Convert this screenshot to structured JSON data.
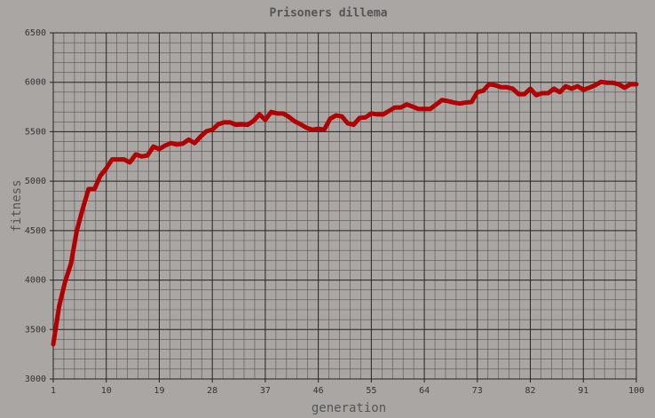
{
  "chart_data": {
    "type": "line",
    "title": "Prisoners dillema",
    "x_label": "generation",
    "y_label": "fitness",
    "x": [
      1,
      2,
      3,
      4,
      5,
      6,
      7,
      8,
      9,
      10,
      11,
      12,
      13,
      14,
      15,
      16,
      17,
      18,
      19,
      20,
      21,
      22,
      23,
      24,
      25,
      26,
      27,
      28,
      29,
      30,
      31,
      32,
      33,
      34,
      35,
      36,
      37,
      38,
      39,
      40,
      41,
      42,
      43,
      44,
      45,
      46,
      47,
      48,
      49,
      50,
      51,
      52,
      53,
      54,
      55,
      56,
      57,
      58,
      59,
      60,
      61,
      62,
      63,
      64,
      65,
      66,
      67,
      68,
      69,
      70,
      71,
      72,
      73,
      74,
      75,
      76,
      77,
      78,
      79,
      80,
      81,
      82,
      83,
      84,
      85,
      86,
      87,
      88,
      89,
      90,
      91,
      92,
      93,
      94,
      95,
      96,
      97,
      98,
      99,
      100
    ],
    "values": [
      3350,
      3735,
      3980,
      4165,
      4500,
      4720,
      4920,
      4920,
      5055,
      5130,
      5220,
      5220,
      5220,
      5190,
      5270,
      5250,
      5260,
      5350,
      5325,
      5360,
      5385,
      5370,
      5380,
      5420,
      5385,
      5450,
      5505,
      5520,
      5575,
      5595,
      5595,
      5570,
      5575,
      5570,
      5610,
      5675,
      5620,
      5700,
      5685,
      5685,
      5650,
      5605,
      5575,
      5540,
      5520,
      5530,
      5520,
      5630,
      5665,
      5655,
      5585,
      5570,
      5640,
      5645,
      5685,
      5675,
      5675,
      5710,
      5745,
      5745,
      5775,
      5755,
      5730,
      5730,
      5730,
      5775,
      5820,
      5810,
      5795,
      5785,
      5795,
      5800,
      5900,
      5915,
      5980,
      5970,
      5950,
      5950,
      5935,
      5880,
      5880,
      5935,
      5870,
      5890,
      5890,
      5935,
      5900,
      5960,
      5935,
      5960,
      5925,
      5945,
      5970,
      6005,
      5995,
      5995,
      5980,
      5945,
      5980,
      5980
    ],
    "color": "#b00000",
    "xlim": [
      1,
      100
    ],
    "xticks": [
      1,
      10,
      19,
      28,
      37,
      46,
      55,
      64,
      73,
      82,
      91,
      100
    ],
    "ylim": [
      3000,
      6500
    ],
    "yticks": [
      3000,
      3500,
      4000,
      4500,
      5000,
      5500,
      6000,
      6500
    ],
    "grid": true
  }
}
